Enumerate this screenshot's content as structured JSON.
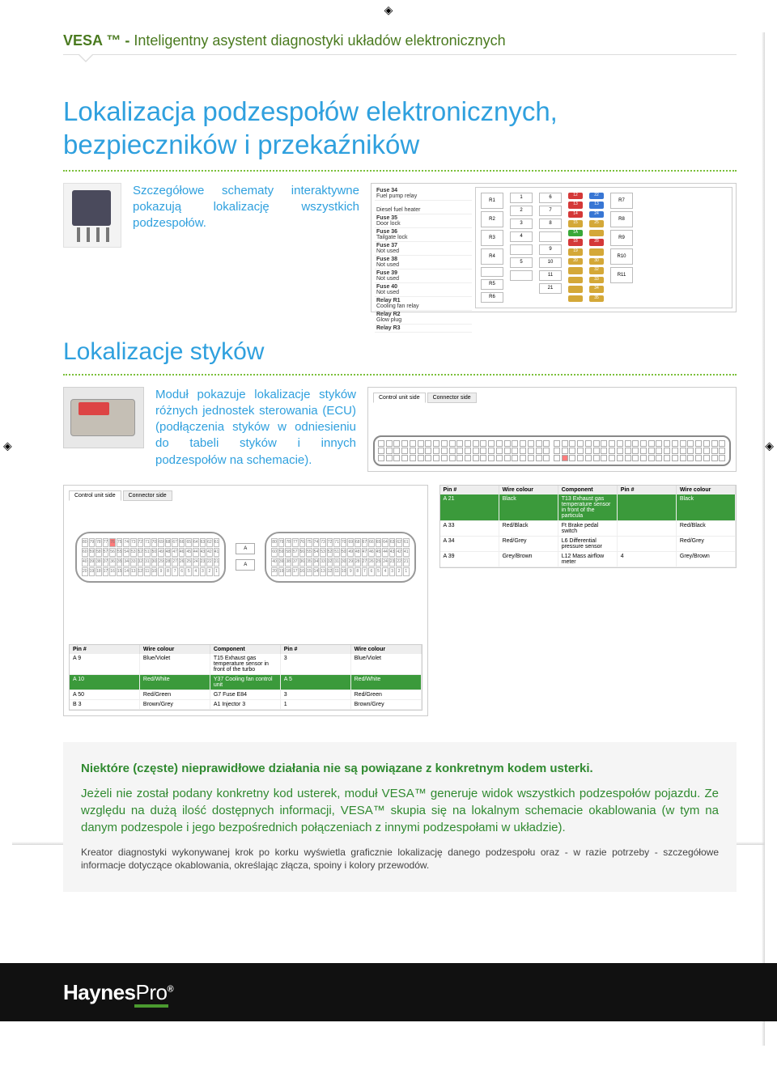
{
  "header": {
    "brand": "VESA ™ - ",
    "suffix": "Inteligentny asystent diagnostyki układów elektronicznych"
  },
  "s1": {
    "title": "Lokalizacja podzespołów elektronicznych, bezpieczników i przekaźników",
    "blurb": "Szczegółowe schematy interaktywne pokazują lokalizację wszystkich podzespołów.",
    "fuse_list": [
      {
        "id": "Fuse 34",
        "desc": "Fuel pump relay"
      },
      {
        "id": "",
        "desc": "Diesel fuel heater"
      },
      {
        "id": "Fuse 35",
        "desc": "Door lock"
      },
      {
        "id": "Fuse 36",
        "desc": "Tailgate lock"
      },
      {
        "id": "Fuse 37",
        "desc": "Not used"
      },
      {
        "id": "Fuse 38",
        "desc": "Not used"
      },
      {
        "id": "Fuse 39",
        "desc": "Not used"
      },
      {
        "id": "Fuse 40",
        "desc": "Not used"
      },
      {
        "id": "Relay R1",
        "desc": "Cooling fan relay"
      },
      {
        "id": "Relay R2",
        "desc": "Glow plug"
      },
      {
        "id": "Relay R3",
        "desc": ""
      }
    ],
    "relay_slots": [
      "R1",
      "R2",
      "R3",
      "R4",
      "",
      "R7",
      "R8",
      "R9",
      "R10",
      "R11"
    ],
    "grid_cells": [
      "1",
      "6",
      "2",
      "7",
      "3",
      "8",
      "4",
      "5",
      "9",
      "10",
      "11",
      "21"
    ],
    "fuse_colors": [
      {
        "n": "12",
        "c": "#d43838"
      },
      {
        "n": "22",
        "c": "#3876d4"
      },
      {
        "n": "13",
        "c": "#d43838"
      },
      {
        "n": "13",
        "c": "#3876d4"
      },
      {
        "n": "14",
        "c": "#d43838"
      },
      {
        "n": "24",
        "c": "#3876d4"
      },
      {
        "n": "15",
        "c": "#d4a838"
      },
      {
        "n": "25",
        "c": "#d4a838"
      },
      {
        "n": "1A",
        "c": "#38a838"
      },
      {
        "n": "",
        "c": "#d4a838"
      },
      {
        "n": "18",
        "c": "#d43838"
      },
      {
        "n": "28",
        "c": "#d43838"
      },
      {
        "n": "19",
        "c": "#d4a838"
      },
      {
        "n": "",
        "c": "#d4a838"
      },
      {
        "n": "20",
        "c": "#d4a838"
      },
      {
        "n": "30",
        "c": "#d4a838"
      },
      {
        "n": "",
        "c": "#d4a838"
      },
      {
        "n": "32",
        "c": "#d4a838"
      },
      {
        "n": "",
        "c": "#d4a838"
      },
      {
        "n": "33",
        "c": "#d4a838"
      },
      {
        "n": "",
        "c": "#d4a838"
      },
      {
        "n": "34",
        "c": "#d4a838"
      },
      {
        "n": "",
        "c": "#d4a838"
      },
      {
        "n": "35",
        "c": "#d4a838"
      }
    ]
  },
  "s2": {
    "title": "Lokalizacje styków",
    "blurb": "Moduł pokazuje lokalizacje styków różnych jednostek sterowania (ECU) (podłączenia styków w odniesieniu do tabeli styków i innych podzespołów na schemacie).",
    "tabs": [
      "Control unit side",
      "Connector side"
    ],
    "pin_headers": [
      "Pin #",
      "Wire colour",
      "Component",
      "Pin #",
      "Wire colour"
    ],
    "pin_rows_top": [
      {
        "hl": true,
        "cells": [
          "A 21",
          "Black",
          "T13 Exhaust gas temperature sensor in front of the particula",
          "",
          "Black"
        ]
      },
      {
        "hl": false,
        "cells": [
          "A 33",
          "Red/Black",
          "Ft Brake pedal switch",
          "",
          "Red/Black"
        ]
      },
      {
        "hl": false,
        "cells": [
          "A 34",
          "Red/Grey",
          "L6 Differential pressure sensor",
          "",
          "Red/Grey"
        ]
      },
      {
        "hl": false,
        "cells": [
          "A 39",
          "Grey/Brown",
          "L12 Mass airflow meter",
          "4",
          "Grey/Brown"
        ]
      }
    ],
    "pin_rows_btm": [
      {
        "hl": false,
        "cells": [
          "A 9",
          "Blue/Violet",
          "T15 Exhaust gas temperature sensor in front of the turbo",
          "3",
          "Blue/Violet"
        ]
      },
      {
        "hl": true,
        "cells": [
          "A 10",
          "Red/White",
          "Y37 Cooling fan control unit",
          "A 5",
          "Red/White"
        ]
      },
      {
        "hl": false,
        "cells": [
          "A 50",
          "Red/Green",
          "G7 Fuse E84",
          "3",
          "Red/Green"
        ]
      },
      {
        "hl": false,
        "cells": [
          "B 3",
          "Brown/Grey",
          "A1 Injector 3",
          "1",
          "Brown/Grey"
        ]
      }
    ],
    "right_hl_pin": 45,
    "left_hl_pin": 4
  },
  "info": {
    "strong": "Niektóre (częste) nieprawidłowe działania nie są powiązane z konkretnym kodem usterki.",
    "body": "Jeżeli nie został podany konkretny kod usterek, moduł VESA™ generuje widok wszystkich podzespołów pojazdu. Ze względu na dużą ilość dostępnych informacji, VESA™ skupia się na lokalnym schemacie okablowania (w tym na danym podzespole i jego bezpośrednich połączeniach z innymi podzespołami w układzie).",
    "small": "Kreator diagnostyki wykonywanej krok po korku wyświetla graficznie lokalizację danego podzespołu oraz - w razie potrzeby - szczegółowe informacje dotyczące okablowania, określając złącza, spoiny i kolory przewodów."
  },
  "footer": {
    "h": "Haynes",
    "p": "Pro",
    "r": "®"
  }
}
